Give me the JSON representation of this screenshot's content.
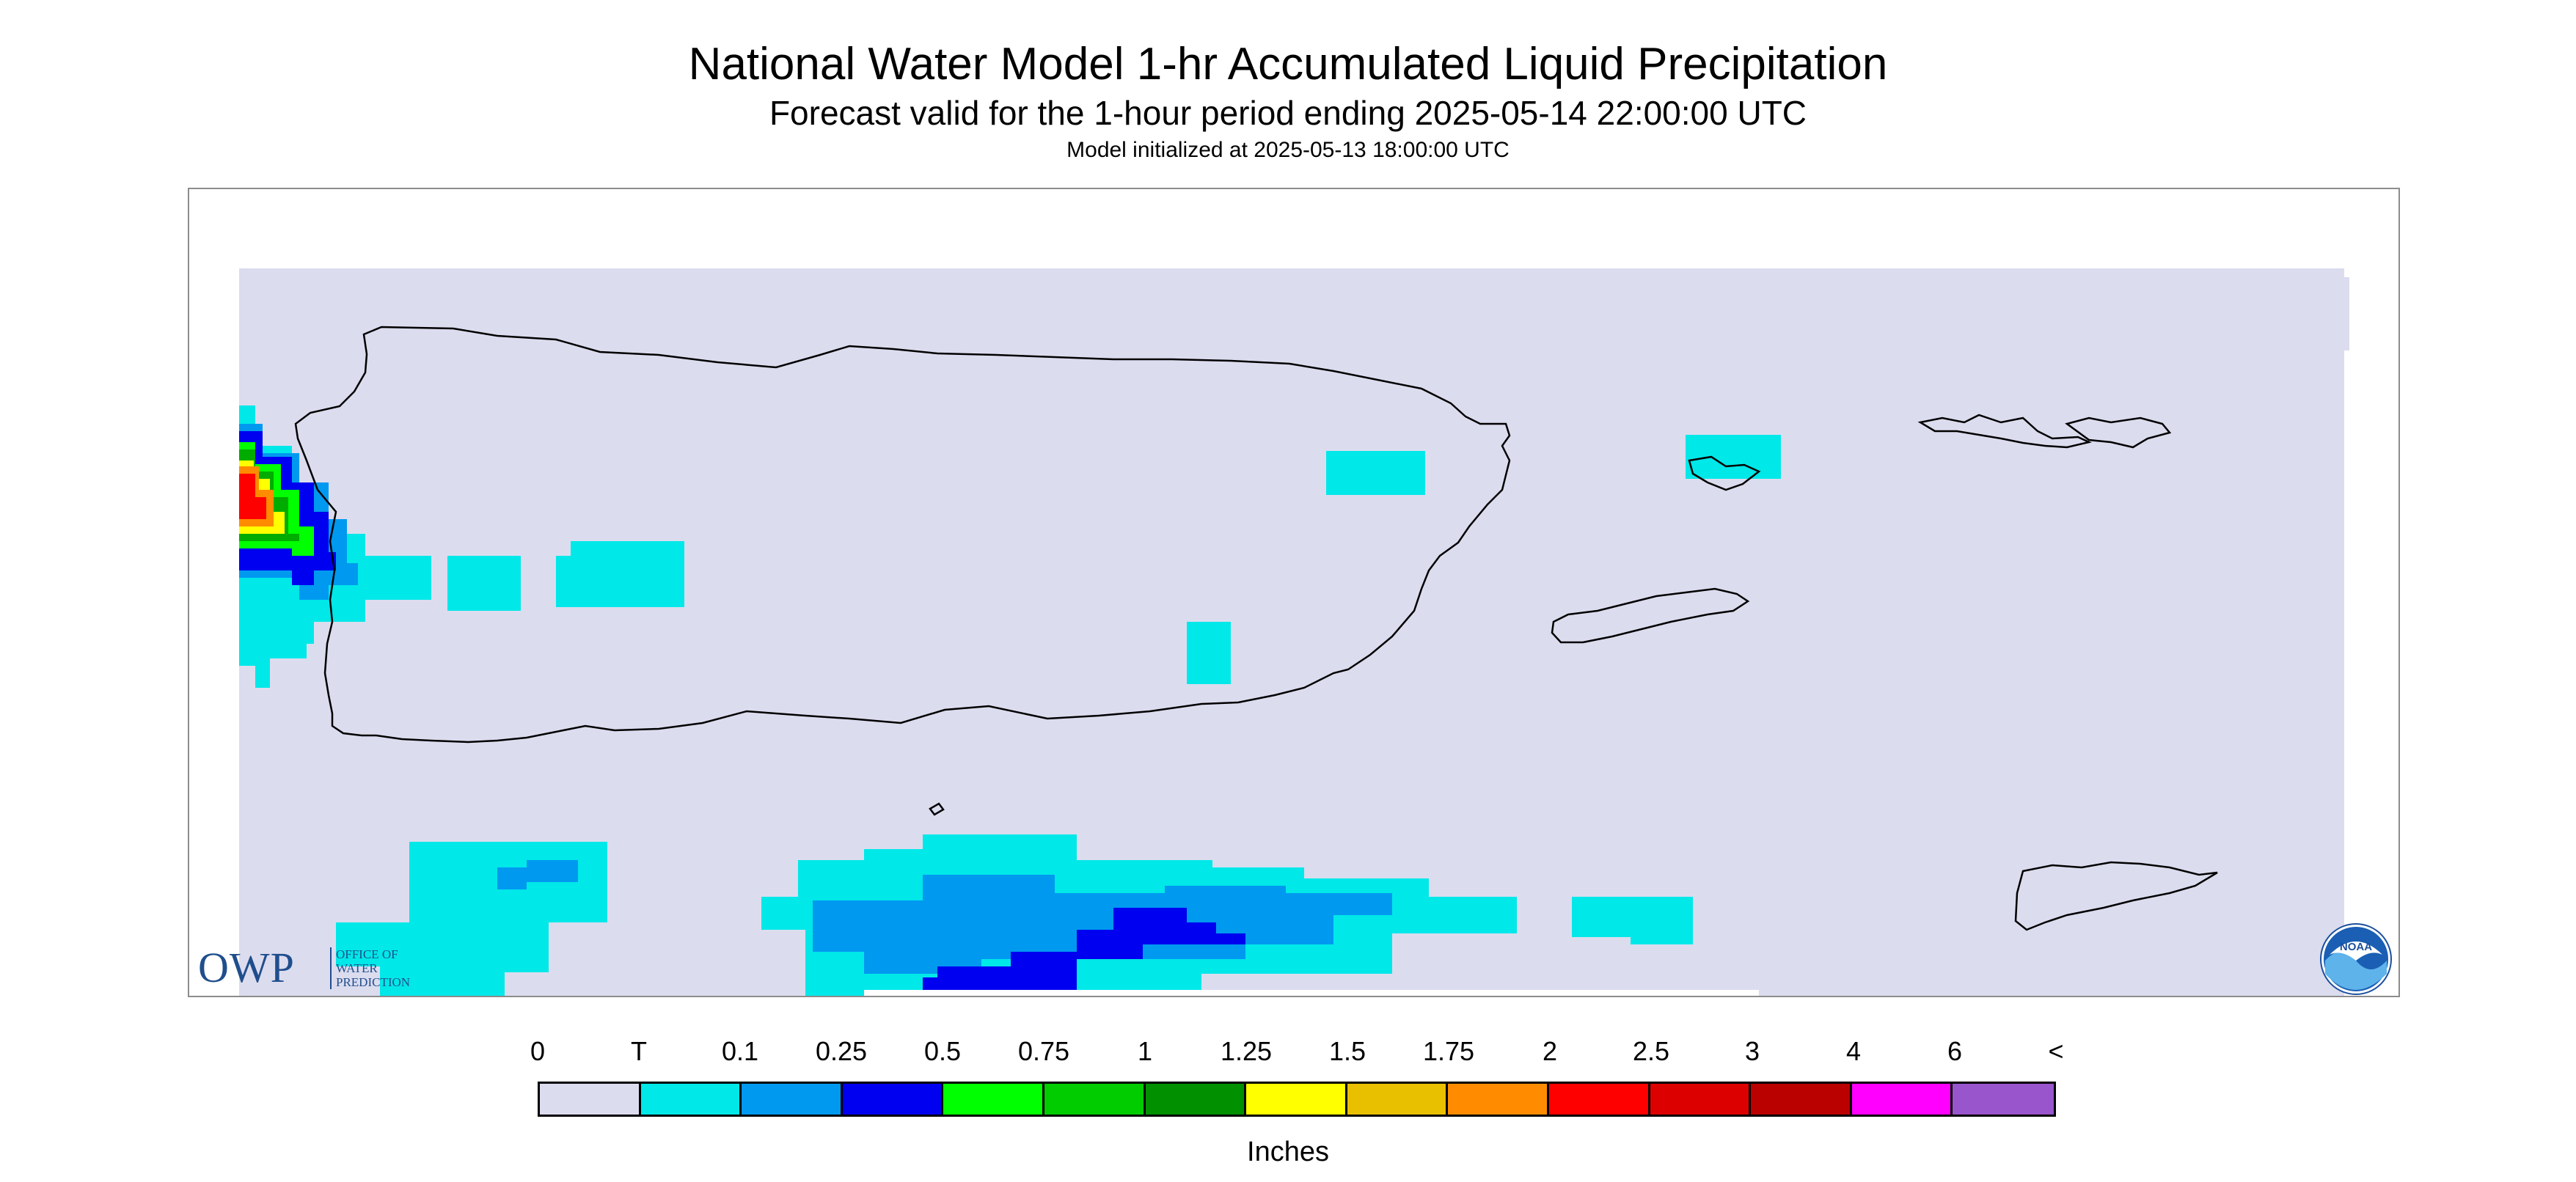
{
  "header": {
    "title": "National Water Model 1-hr Accumulated Liquid Precipitation",
    "subtitle": "Forecast valid for the 1-hour period ending 2025-05-14 22:00:00 UTC",
    "init": "Model initialized at 2025-05-13 18:00:00 UTC"
  },
  "map": {
    "background_color": "#dcdcef",
    "coastline_color": "#000000",
    "regions": [
      "Puerto Rico",
      "Vieques",
      "Culebra",
      "Mona Island",
      "St. Thomas / St. John",
      "St. Croix"
    ]
  },
  "logos": {
    "owp_main": "OWP",
    "owp_sub": [
      "OFFICE OF",
      "WATER",
      "PREDICTION"
    ],
    "noaa_text": "NOAA"
  },
  "legend": {
    "labels": [
      "0",
      "T",
      "0.1",
      "0.25",
      "0.5",
      "0.75",
      "1",
      "1.25",
      "1.5",
      "1.75",
      "2",
      "2.5",
      "3",
      "4",
      "6",
      "<"
    ],
    "colors": [
      "#dcdcef",
      "#00e8e8",
      "#0099f0",
      "#0000f0",
      "#00ff00",
      "#00cc00",
      "#009000",
      "#ffff00",
      "#e8c000",
      "#ff8c00",
      "#ff0000",
      "#dd0000",
      "#bb0000",
      "#ff00ff",
      "#9955cc"
    ],
    "units": "Inches"
  }
}
